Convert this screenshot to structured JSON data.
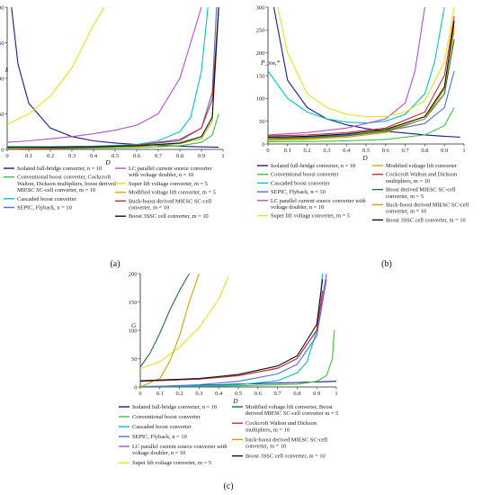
{
  "chart_data": [
    {
      "type": "line",
      "panel_label": "(a)",
      "xlabel": "D",
      "ylabel": "k",
      "xlim": [
        0,
        1
      ],
      "ylim": [
        0,
        200
      ],
      "x_ticks": [
        "0",
        "0.1",
        "0.2",
        "0.3",
        "0.4",
        "0.5",
        "0.6",
        "0.7",
        "0.8",
        "0.9",
        "1"
      ],
      "y_ticks": [
        "0",
        "50",
        "100",
        "150",
        "200"
      ],
      "grid": false,
      "legend_location": "bottom",
      "series": [
        {
          "name": "Isolated full-bridge converter, n = 10",
          "color": "#1a1a8c",
          "x": [
            0.02,
            0.05,
            0.1,
            0.2,
            0.3,
            0.4,
            0.5,
            0.6,
            0.7,
            0.8,
            0.9,
            0.98
          ],
          "y": [
            200,
            120,
            65,
            30,
            18,
            12,
            9,
            7,
            5.5,
            4.5,
            3.5,
            3
          ]
        },
        {
          "name": "Conventional boost converter, Cockcroft Walton, Dickson multipliers, boost derived MIESC SC-cell converter, m = 10",
          "color": "#3fbf3f",
          "x": [
            0,
            0.2,
            0.4,
            0.6,
            0.8,
            0.9,
            0.95,
            0.98
          ],
          "y": [
            1,
            1.2,
            1.6,
            2.5,
            5,
            10,
            20,
            50
          ]
        },
        {
          "name": "Cascaded boost converter",
          "color": "#00c4c4",
          "x": [
            0,
            0.2,
            0.4,
            0.6,
            0.7,
            0.8,
            0.85,
            0.9,
            0.93
          ],
          "y": [
            4,
            4,
            4.5,
            7,
            12,
            25,
            45,
            110,
            200
          ]
        },
        {
          "name": "SEPIC, Flyback, n = 10",
          "color": "#4a6fd8",
          "x": [
            0,
            0.2,
            0.4,
            0.6,
            0.8,
            0.9,
            0.95,
            0.97
          ],
          "y": [
            3,
            3.2,
            4,
            6,
            12,
            30,
            80,
            200
          ]
        },
        {
          "name": "LC parallel current source converter with voltage doubler, n = 10",
          "color": "#b050c8",
          "x": [
            0,
            0.1,
            0.2,
            0.3,
            0.4,
            0.5,
            0.6,
            0.7,
            0.8,
            0.85,
            0.9
          ],
          "y": [
            10,
            12,
            15,
            18,
            22,
            27,
            34,
            50,
            100,
            150,
            200
          ]
        },
        {
          "name": "Super lift voltage converter, m = 5",
          "color": "#e8e020",
          "x": [
            0,
            0.1,
            0.2,
            0.3,
            0.35,
            0.4,
            0.45
          ],
          "y": [
            35,
            50,
            75,
            115,
            145,
            175,
            200
          ]
        },
        {
          "name": "Modified voltage lift converter, m = 5",
          "color": "#b8b800",
          "x": [
            0,
            0.2,
            0.4,
            0.6,
            0.8,
            0.9,
            0.95,
            0.98
          ],
          "y": [
            2,
            2.2,
            2.8,
            4,
            8,
            15,
            40,
            200
          ]
        },
        {
          "name": "Buck-boost derived MIESC SC-cell converter, m = 10",
          "color": "#c03030",
          "x": [
            0,
            0.2,
            0.4,
            0.6,
            0.8,
            0.9,
            0.95,
            0.98
          ],
          "y": [
            0,
            1.5,
            3,
            6,
            14,
            30,
            70,
            200
          ]
        },
        {
          "name": "Boost 3SSC cell converter, m = 10",
          "color": "#111111",
          "x": [
            0,
            0.2,
            0.4,
            0.6,
            0.8,
            0.9,
            0.95,
            0.98
          ],
          "y": [
            3,
            3.2,
            3.8,
            5,
            9,
            18,
            45,
            200
          ]
        }
      ]
    },
    {
      "type": "line",
      "panel_label": "(b)",
      "xlabel": "D",
      "ylabel": "P_sw,*",
      "xlim": [
        0,
        1
      ],
      "ylim": [
        0,
        300
      ],
      "x_ticks": [
        "0",
        "0.1",
        "0.2",
        "0.3",
        "0.4",
        "0.5",
        "0.6",
        "0.7",
        "0.8",
        "0.9",
        "1"
      ],
      "y_ticks": [
        "0",
        "50",
        "100",
        "150",
        "200",
        "250",
        "300"
      ],
      "grid": false,
      "legend_location": "bottom",
      "series": [
        {
          "name": "Isolated full-bridge converter, n = 10",
          "color": "#1a1a8c",
          "x": [
            0.03,
            0.1,
            0.2,
            0.3,
            0.4,
            0.5,
            0.6,
            0.7,
            0.8,
            0.9,
            0.98
          ],
          "y": [
            300,
            140,
            80,
            55,
            42,
            34,
            28,
            24,
            20,
            17,
            15
          ]
        },
        {
          "name": "Conventional boost converter",
          "color": "#3fbf3f",
          "x": [
            0,
            0.2,
            0.4,
            0.6,
            0.8,
            0.9,
            0.95
          ],
          "y": [
            5,
            5.5,
            7,
            10,
            20,
            40,
            80
          ]
        },
        {
          "name": "Cascaded boost converter",
          "color": "#00c4c4",
          "x": [
            0,
            0.1,
            0.2,
            0.3,
            0.4,
            0.5,
            0.6,
            0.7,
            0.8,
            0.85,
            0.9
          ],
          "y": [
            160,
            100,
            70,
            55,
            48,
            46,
            50,
            65,
            110,
            180,
            300
          ]
        },
        {
          "name": "SEPIC, Flyback, n = 10",
          "color": "#4a6fd8",
          "x": [
            0,
            0.2,
            0.4,
            0.6,
            0.8,
            0.9,
            0.95
          ],
          "y": [
            15,
            16,
            20,
            28,
            45,
            80,
            160
          ]
        },
        {
          "name": "LC parallel current source converter with voltage doubler, n = 10",
          "color": "#b050c8",
          "x": [
            0,
            0.2,
            0.4,
            0.6,
            0.7,
            0.75,
            0.8
          ],
          "y": [
            20,
            25,
            35,
            55,
            90,
            160,
            300
          ]
        },
        {
          "name": "Super lift voltage converter, m = 5",
          "color": "#e8e020",
          "x": [
            0.05,
            0.1,
            0.2,
            0.3,
            0.4,
            0.5,
            0.6,
            0.7,
            0.8,
            0.9,
            0.95
          ],
          "y": [
            300,
            200,
            110,
            80,
            65,
            60,
            60,
            70,
            95,
            180,
            300
          ]
        },
        {
          "name": "Modified voltage lift converter",
          "color": "#b8b800",
          "x": [
            0,
            0.2,
            0.4,
            0.6,
            0.8,
            0.9,
            0.95
          ],
          "y": [
            10,
            12,
            18,
            30,
            60,
            120,
            250
          ]
        },
        {
          "name": "Cockcroft Walton and Dickson multipliers, m = 10",
          "color": "#c03030",
          "x": [
            0,
            0.2,
            0.4,
            0.6,
            0.8,
            0.9,
            0.95
          ],
          "y": [
            18,
            20,
            25,
            35,
            70,
            150,
            280
          ]
        },
        {
          "name": "Boost derived MIESC SC-cell converter, m = 5",
          "color": "#1f6f3a",
          "x": [
            0,
            0.2,
            0.4,
            0.6,
            0.8,
            0.9,
            0.95
          ],
          "y": [
            12,
            14,
            18,
            28,
            55,
            110,
            230
          ]
        },
        {
          "name": "Buck-boost derived MIESC SC-cell converter, m = 10",
          "color": "#d4a000",
          "x": [
            0,
            0.2,
            0.4,
            0.6,
            0.8,
            0.9,
            0.95
          ],
          "y": [
            8,
            10,
            15,
            25,
            55,
            120,
            260
          ]
        },
        {
          "name": "Boost 3SSC cell converter, m = 10",
          "color": "#111111",
          "x": [
            0,
            0.2,
            0.4,
            0.6,
            0.8,
            0.9,
            0.95
          ],
          "y": [
            15,
            17,
            22,
            32,
            60,
            125,
            270
          ]
        }
      ]
    },
    {
      "type": "line",
      "panel_label": "(c)",
      "xlabel": "D",
      "ylabel": "G",
      "xlim": [
        0,
        1
      ],
      "ylim": [
        0,
        200
      ],
      "x_ticks": [
        "0",
        "0.1",
        "0.2",
        "0.3",
        "0.4",
        "0.5",
        "0.6",
        "0.7",
        "0.8",
        "0.9",
        "1"
      ],
      "y_ticks": [
        "0",
        "50",
        "100",
        "150",
        "200"
      ],
      "grid": false,
      "legend_location": "bottom",
      "series": [
        {
          "name": "Isolated full-bridge converter, n = 10",
          "color": "#1a1a8c",
          "x": [
            0,
            0.2,
            0.4,
            0.6,
            0.8,
            0.9,
            1
          ],
          "y": [
            0,
            2,
            4,
            6,
            8,
            9,
            10
          ]
        },
        {
          "name": "Conventional boost converter",
          "color": "#3fbf3f",
          "x": [
            0,
            0.5,
            0.8,
            0.9,
            0.95,
            0.98,
            0.99
          ],
          "y": [
            1,
            2,
            5,
            10,
            20,
            50,
            100
          ]
        },
        {
          "name": "Cascaded boost converter",
          "color": "#00c4c4",
          "x": [
            0,
            0.3,
            0.5,
            0.7,
            0.8,
            0.85,
            0.9,
            0.93
          ],
          "y": [
            1,
            2,
            4,
            11,
            25,
            44,
            100,
            200
          ]
        },
        {
          "name": "SEPIC, Flyback, n = 10",
          "color": "#4a6fd8",
          "x": [
            0,
            0.3,
            0.5,
            0.7,
            0.8,
            0.9,
            0.95
          ],
          "y": [
            0,
            4,
            10,
            23,
            40,
            90,
            190
          ]
        },
        {
          "name": "LC parallel current source converter with voltage doubler, n = 10",
          "color": "#b050c8",
          "x": [
            0,
            0.3,
            0.5,
            0.7,
            0.8,
            0.9,
            0.95
          ],
          "y": [
            10,
            14,
            20,
            33,
            50,
            100,
            200
          ]
        },
        {
          "name": "Super lift voltage converter, m = 5",
          "color": "#e8e020",
          "x": [
            0,
            0.1,
            0.2,
            0.3,
            0.4,
            0.45
          ],
          "y": [
            32,
            45,
            70,
            105,
            155,
            195
          ]
        },
        {
          "name": "Modified voltage lift converter, Boost derived MIESC SC-cell converter m = 5",
          "color": "#1f6f3a",
          "x": [
            0,
            0.05,
            0.1,
            0.15,
            0.2,
            0.25
          ],
          "y": [
            35,
            60,
            95,
            135,
            170,
            200
          ]
        },
        {
          "name": "Cockcroft Walton and Dickson multipliers, m = 10",
          "color": "#c03030",
          "x": [
            0,
            0.3,
            0.5,
            0.7,
            0.8,
            0.9,
            0.93
          ],
          "y": [
            10,
            14,
            20,
            33,
            50,
            100,
            170
          ]
        },
        {
          "name": "buck-boost derived MIESC SC-cell converter, m = 10",
          "color": "#d4a000",
          "x": [
            0,
            0.1,
            0.15,
            0.2,
            0.25,
            0.3
          ],
          "y": [
            0,
            15,
            45,
            90,
            150,
            200
          ]
        },
        {
          "name": "Boost 3SSC cell converter, m = 10",
          "color": "#111111",
          "x": [
            0,
            0.3,
            0.5,
            0.7,
            0.8,
            0.9,
            0.93
          ],
          "y": [
            11,
            15,
            22,
            37,
            55,
            110,
            190
          ]
        }
      ]
    }
  ]
}
